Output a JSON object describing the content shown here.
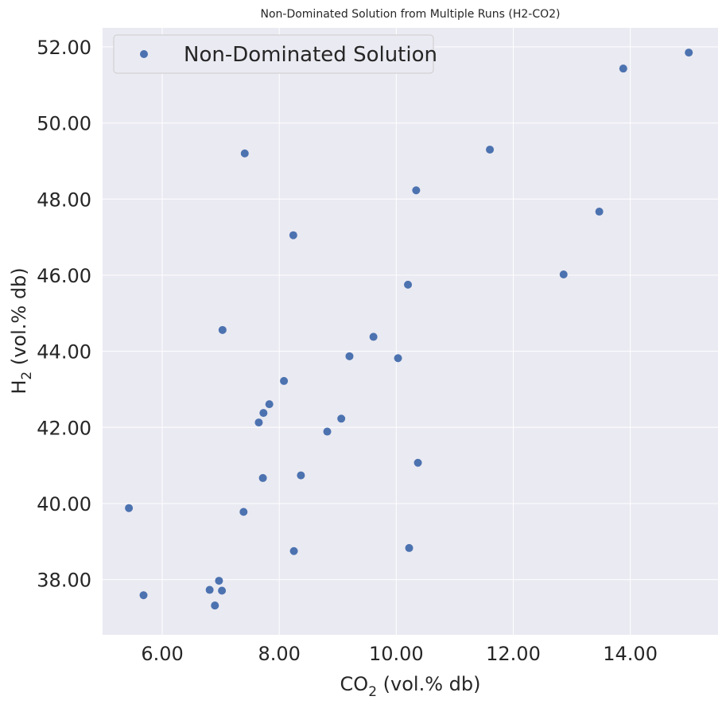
{
  "chart_data": {
    "type": "scatter",
    "title": "Non-Dominated Solution from Multiple Runs (H2-CO2)",
    "xlabel": {
      "prefix": "CO",
      "sub": "2",
      "suffix": " (vol.% db)"
    },
    "ylabel": {
      "prefix": "H",
      "sub": "2",
      "suffix": " (vol.% db)"
    },
    "xlim": [
      4.98,
      15.5
    ],
    "ylim": [
      36.55,
      52.5
    ],
    "xticks": [
      6,
      8,
      10,
      12,
      14
    ],
    "yticks": [
      38,
      40,
      42,
      44,
      46,
      48,
      50,
      52
    ],
    "xtick_labels": [
      "6.00",
      "8.00",
      "10.00",
      "12.00",
      "14.00"
    ],
    "ytick_labels": [
      "38.00",
      "40.00",
      "42.00",
      "44.00",
      "46.00",
      "48.00",
      "50.00",
      "52.00"
    ],
    "grid": true,
    "legend_position": "top-left",
    "series": [
      {
        "name": "Non-Dominated Solution",
        "color": "#4c72b0",
        "x": [
          15.0,
          13.88,
          11.6,
          7.41,
          10.34,
          13.47,
          8.24,
          12.86,
          10.2,
          7.03,
          9.61,
          9.2,
          10.03,
          8.08,
          7.83,
          7.73,
          7.65,
          9.06,
          8.82,
          10.37,
          8.37,
          7.72,
          5.43,
          7.39,
          10.22,
          8.25,
          6.97,
          6.81,
          7.02,
          5.68,
          6.9
        ],
        "y": [
          51.85,
          51.43,
          49.3,
          49.2,
          48.23,
          47.67,
          47.05,
          46.02,
          45.75,
          44.56,
          44.38,
          43.87,
          43.82,
          43.22,
          42.61,
          42.38,
          42.13,
          42.23,
          41.89,
          41.07,
          40.74,
          40.67,
          39.88,
          39.78,
          38.83,
          38.75,
          37.97,
          37.73,
          37.71,
          37.59,
          37.32
        ]
      }
    ]
  }
}
